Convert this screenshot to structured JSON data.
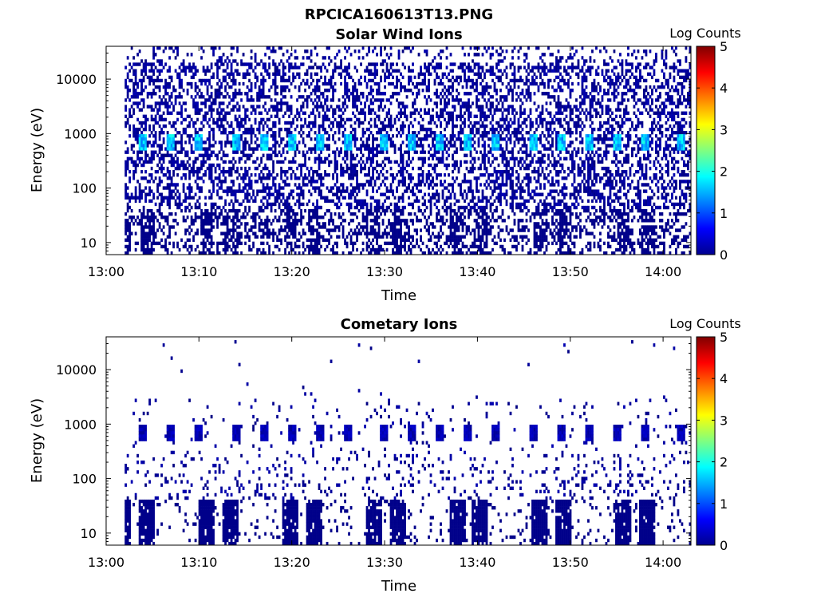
{
  "figure": {
    "title": "RPCICA160613T13.PNG"
  },
  "colors": {
    "colormap": "jet",
    "background": "#ffffff",
    "axes": "#000000"
  },
  "chart_data": [
    {
      "type": "heatmap",
      "title": "Solar Wind Ions",
      "xlabel": "Time",
      "ylabel": "Energy (eV)",
      "x_ticks": [
        "13:00",
        "13:10",
        "13:20",
        "13:30",
        "13:40",
        "13:50",
        "14:00"
      ],
      "y_ticks": [
        "10",
        "100",
        "1000",
        "10000"
      ],
      "y_scale": "log",
      "xlim": [
        "13:00",
        "14:03"
      ],
      "ylim": [
        6,
        40000
      ],
      "colorbar": {
        "title": "Log Counts",
        "ticks": [
          "0",
          "1",
          "2",
          "3",
          "4",
          "5"
        ],
        "range": [
          0,
          5
        ],
        "colormap": "jet"
      },
      "data_start": "13:02",
      "background_density": 0.42,
      "peak_energy_ev": 700,
      "peak_log_counts": [
        1.2,
        2.0
      ],
      "periodic_peaks": [
        "13:04",
        "13:07",
        "13:10",
        "13:14",
        "13:17",
        "13:20",
        "13:23",
        "13:26",
        "13:30",
        "13:33",
        "13:36",
        "13:39",
        "13:42",
        "13:46",
        "13:49",
        "13:52",
        "13:55",
        "13:58",
        "14:02"
      ]
    },
    {
      "type": "heatmap",
      "title": "Cometary Ions",
      "xlabel": "Time",
      "ylabel": "Energy (eV)",
      "x_ticks": [
        "13:00",
        "13:10",
        "13:20",
        "13:30",
        "13:40",
        "13:50",
        "14:00"
      ],
      "y_ticks": [
        "10",
        "100",
        "1000",
        "10000"
      ],
      "y_scale": "log",
      "xlim": [
        "13:00",
        "14:03"
      ],
      "ylim": [
        6,
        40000
      ],
      "colorbar": {
        "title": "Log Counts",
        "ticks": [
          "0",
          "1",
          "2",
          "3",
          "4",
          "5"
        ],
        "range": [
          0,
          5
        ],
        "colormap": "jet"
      },
      "data_start": "13:02",
      "background_density": 0.08,
      "peak_energy_ev": 700,
      "peak_log_counts": [
        0.1,
        0.4
      ],
      "periodic_peaks": [
        "13:04",
        "13:07",
        "13:10",
        "13:14",
        "13:17",
        "13:20",
        "13:23",
        "13:26",
        "13:30",
        "13:33",
        "13:36",
        "13:39",
        "13:42",
        "13:46",
        "13:49",
        "13:52",
        "13:55",
        "13:58",
        "14:02"
      ]
    }
  ]
}
